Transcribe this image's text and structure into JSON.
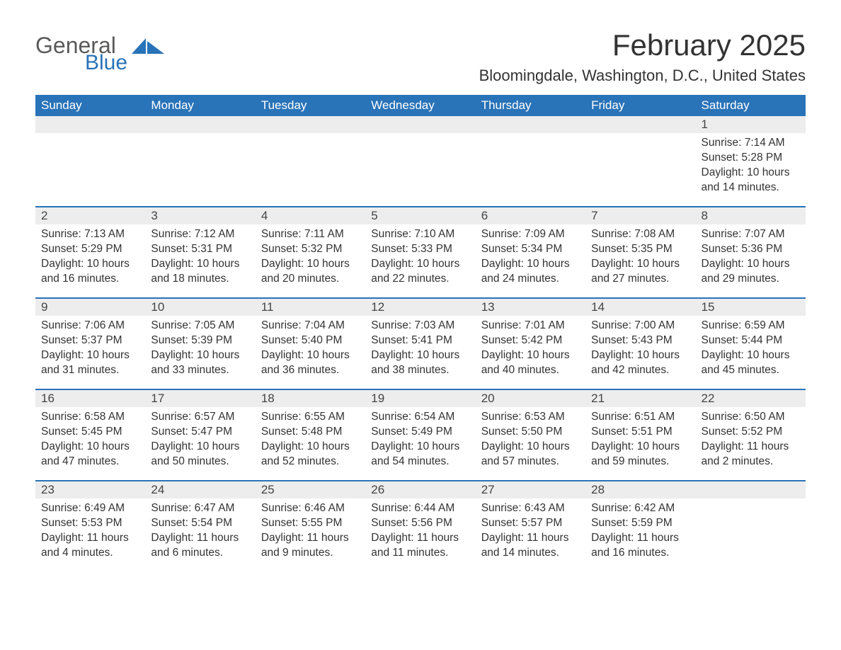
{
  "logo": {
    "word1": "General",
    "word2": "Blue",
    "accent_color": "#2973b8",
    "gray_color": "#5a5a5a"
  },
  "header": {
    "month_title": "February 2025",
    "location": "Bloomingdale, Washington, D.C., United States"
  },
  "style": {
    "header_bg": "#2973b8",
    "header_fg": "#ffffff",
    "row_sep_color": "#2973b8",
    "daynum_bg": "#ededed",
    "page_bg": "#ffffff",
    "text_color": "#333333",
    "font_family": "Segoe UI, Arial, sans-serif",
    "title_fontsize": 42,
    "location_fontsize": 22,
    "dayheader_fontsize": 17,
    "body_fontsize": 15.5
  },
  "days_of_week": [
    "Sunday",
    "Monday",
    "Tuesday",
    "Wednesday",
    "Thursday",
    "Friday",
    "Saturday"
  ],
  "weeks": [
    [
      null,
      null,
      null,
      null,
      null,
      null,
      {
        "n": "1",
        "sunrise": "Sunrise: 7:14 AM",
        "sunset": "Sunset: 5:28 PM",
        "daylight": "Daylight: 10 hours and 14 minutes."
      }
    ],
    [
      {
        "n": "2",
        "sunrise": "Sunrise: 7:13 AM",
        "sunset": "Sunset: 5:29 PM",
        "daylight": "Daylight: 10 hours and 16 minutes."
      },
      {
        "n": "3",
        "sunrise": "Sunrise: 7:12 AM",
        "sunset": "Sunset: 5:31 PM",
        "daylight": "Daylight: 10 hours and 18 minutes."
      },
      {
        "n": "4",
        "sunrise": "Sunrise: 7:11 AM",
        "sunset": "Sunset: 5:32 PM",
        "daylight": "Daylight: 10 hours and 20 minutes."
      },
      {
        "n": "5",
        "sunrise": "Sunrise: 7:10 AM",
        "sunset": "Sunset: 5:33 PM",
        "daylight": "Daylight: 10 hours and 22 minutes."
      },
      {
        "n": "6",
        "sunrise": "Sunrise: 7:09 AM",
        "sunset": "Sunset: 5:34 PM",
        "daylight": "Daylight: 10 hours and 24 minutes."
      },
      {
        "n": "7",
        "sunrise": "Sunrise: 7:08 AM",
        "sunset": "Sunset: 5:35 PM",
        "daylight": "Daylight: 10 hours and 27 minutes."
      },
      {
        "n": "8",
        "sunrise": "Sunrise: 7:07 AM",
        "sunset": "Sunset: 5:36 PM",
        "daylight": "Daylight: 10 hours and 29 minutes."
      }
    ],
    [
      {
        "n": "9",
        "sunrise": "Sunrise: 7:06 AM",
        "sunset": "Sunset: 5:37 PM",
        "daylight": "Daylight: 10 hours and 31 minutes."
      },
      {
        "n": "10",
        "sunrise": "Sunrise: 7:05 AM",
        "sunset": "Sunset: 5:39 PM",
        "daylight": "Daylight: 10 hours and 33 minutes."
      },
      {
        "n": "11",
        "sunrise": "Sunrise: 7:04 AM",
        "sunset": "Sunset: 5:40 PM",
        "daylight": "Daylight: 10 hours and 36 minutes."
      },
      {
        "n": "12",
        "sunrise": "Sunrise: 7:03 AM",
        "sunset": "Sunset: 5:41 PM",
        "daylight": "Daylight: 10 hours and 38 minutes."
      },
      {
        "n": "13",
        "sunrise": "Sunrise: 7:01 AM",
        "sunset": "Sunset: 5:42 PM",
        "daylight": "Daylight: 10 hours and 40 minutes."
      },
      {
        "n": "14",
        "sunrise": "Sunrise: 7:00 AM",
        "sunset": "Sunset: 5:43 PM",
        "daylight": "Daylight: 10 hours and 42 minutes."
      },
      {
        "n": "15",
        "sunrise": "Sunrise: 6:59 AM",
        "sunset": "Sunset: 5:44 PM",
        "daylight": "Daylight: 10 hours and 45 minutes."
      }
    ],
    [
      {
        "n": "16",
        "sunrise": "Sunrise: 6:58 AM",
        "sunset": "Sunset: 5:45 PM",
        "daylight": "Daylight: 10 hours and 47 minutes."
      },
      {
        "n": "17",
        "sunrise": "Sunrise: 6:57 AM",
        "sunset": "Sunset: 5:47 PM",
        "daylight": "Daylight: 10 hours and 50 minutes."
      },
      {
        "n": "18",
        "sunrise": "Sunrise: 6:55 AM",
        "sunset": "Sunset: 5:48 PM",
        "daylight": "Daylight: 10 hours and 52 minutes."
      },
      {
        "n": "19",
        "sunrise": "Sunrise: 6:54 AM",
        "sunset": "Sunset: 5:49 PM",
        "daylight": "Daylight: 10 hours and 54 minutes."
      },
      {
        "n": "20",
        "sunrise": "Sunrise: 6:53 AM",
        "sunset": "Sunset: 5:50 PM",
        "daylight": "Daylight: 10 hours and 57 minutes."
      },
      {
        "n": "21",
        "sunrise": "Sunrise: 6:51 AM",
        "sunset": "Sunset: 5:51 PM",
        "daylight": "Daylight: 10 hours and 59 minutes."
      },
      {
        "n": "22",
        "sunrise": "Sunrise: 6:50 AM",
        "sunset": "Sunset: 5:52 PM",
        "daylight": "Daylight: 11 hours and 2 minutes."
      }
    ],
    [
      {
        "n": "23",
        "sunrise": "Sunrise: 6:49 AM",
        "sunset": "Sunset: 5:53 PM",
        "daylight": "Daylight: 11 hours and 4 minutes."
      },
      {
        "n": "24",
        "sunrise": "Sunrise: 6:47 AM",
        "sunset": "Sunset: 5:54 PM",
        "daylight": "Daylight: 11 hours and 6 minutes."
      },
      {
        "n": "25",
        "sunrise": "Sunrise: 6:46 AM",
        "sunset": "Sunset: 5:55 PM",
        "daylight": "Daylight: 11 hours and 9 minutes."
      },
      {
        "n": "26",
        "sunrise": "Sunrise: 6:44 AM",
        "sunset": "Sunset: 5:56 PM",
        "daylight": "Daylight: 11 hours and 11 minutes."
      },
      {
        "n": "27",
        "sunrise": "Sunrise: 6:43 AM",
        "sunset": "Sunset: 5:57 PM",
        "daylight": "Daylight: 11 hours and 14 minutes."
      },
      {
        "n": "28",
        "sunrise": "Sunrise: 6:42 AM",
        "sunset": "Sunset: 5:59 PM",
        "daylight": "Daylight: 11 hours and 16 minutes."
      },
      null
    ]
  ]
}
